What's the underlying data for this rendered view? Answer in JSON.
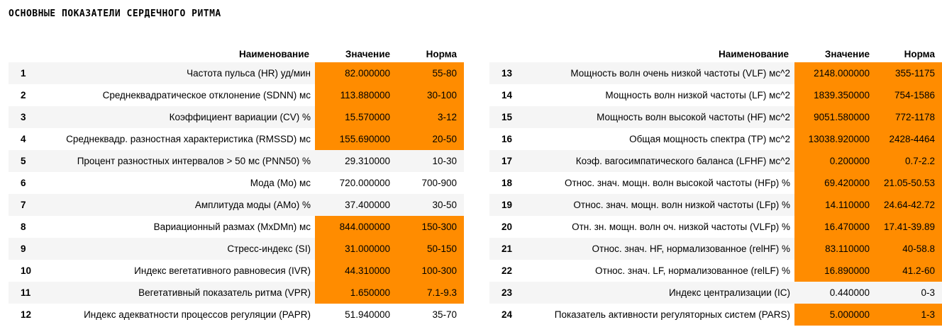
{
  "title": "ОСНОВНЫЕ ПОКАЗАТЕЛИ СЕРДЕЧНОГО РИТМА",
  "columns": {
    "name": "Наименование",
    "value": "Значение",
    "norm": "Норма"
  },
  "highlight_color": "#ff8c00",
  "left_rows": [
    {
      "idx": "1",
      "name": "Частота пульса (HR) уд/мин",
      "value": "82.000000",
      "norm": "55-80",
      "highlight": true
    },
    {
      "idx": "2",
      "name": "Среднеквадратическое отклонение (SDNN) мс",
      "value": "113.880000",
      "norm": "30-100",
      "highlight": true
    },
    {
      "idx": "3",
      "name": "Коэффициент вариации (CV) %",
      "value": "15.570000",
      "norm": "3-12",
      "highlight": true
    },
    {
      "idx": "4",
      "name": "Среднеквадр. разностная характеристика (RMSSD) мс",
      "value": "155.690000",
      "norm": "20-50",
      "highlight": true
    },
    {
      "idx": "5",
      "name": "Процент разностных интервалов > 50 мс (PNN50) %",
      "value": "29.310000",
      "norm": "10-30",
      "highlight": false
    },
    {
      "idx": "6",
      "name": "Мода (Mo) мс",
      "value": "720.000000",
      "norm": "700-900",
      "highlight": false
    },
    {
      "idx": "7",
      "name": "Амплитуда моды (AMo) %",
      "value": "37.400000",
      "norm": "30-50",
      "highlight": false
    },
    {
      "idx": "8",
      "name": "Вариационный размах (MxDMn) мс",
      "value": "844.000000",
      "norm": "150-300",
      "highlight": true
    },
    {
      "idx": "9",
      "name": "Стресс-индекс (SI)",
      "value": "31.000000",
      "norm": "50-150",
      "highlight": true
    },
    {
      "idx": "10",
      "name": "Индекс вегетативного равновесия (IVR)",
      "value": "44.310000",
      "norm": "100-300",
      "highlight": true
    },
    {
      "idx": "11",
      "name": "Вегетативный показатель ритма (VPR)",
      "value": "1.650000",
      "norm": "7.1-9.3",
      "highlight": true
    },
    {
      "idx": "12",
      "name": "Индекс адекватности процессов регуляции (PAPR)",
      "value": "51.940000",
      "norm": "35-70",
      "highlight": false
    }
  ],
  "right_rows": [
    {
      "idx": "13",
      "name": "Мощность волн очень низкой частоты (VLF) мс^2",
      "value": "2148.000000",
      "norm": "355-1175",
      "highlight": true
    },
    {
      "idx": "14",
      "name": "Мощность волн низкой частоты (LF) мс^2",
      "value": "1839.350000",
      "norm": "754-1586",
      "highlight": true
    },
    {
      "idx": "15",
      "name": "Мощность волн высокой частоты (HF) мс^2",
      "value": "9051.580000",
      "norm": "772-1178",
      "highlight": true
    },
    {
      "idx": "16",
      "name": "Общая мощность спектра (TP) мс^2",
      "value": "13038.920000",
      "norm": "2428-4464",
      "highlight": true
    },
    {
      "idx": "17",
      "name": "Коэф. вагосимпатического баланса (LFHF) мс^2",
      "value": "0.200000",
      "norm": "0.7-2.2",
      "highlight": true
    },
    {
      "idx": "18",
      "name": "Относ. знач. мощн. волн высокой частоты (HFp) %",
      "value": "69.420000",
      "norm": "21.05-50.53",
      "highlight": true
    },
    {
      "idx": "19",
      "name": "Относ. знач. мощн. волн низкой частоты (LFp) %",
      "value": "14.110000",
      "norm": "24.64-42.72",
      "highlight": true
    },
    {
      "idx": "20",
      "name": "Отн. зн. мощн. волн оч. низкой частоты (VLFp) %",
      "value": "16.470000",
      "norm": "17.41-39.89",
      "highlight": true
    },
    {
      "idx": "21",
      "name": "Относ. знач. HF, нормализованное (relHF) %",
      "value": "83.110000",
      "norm": "40-58.8",
      "highlight": true
    },
    {
      "idx": "22",
      "name": "Относ. знач. LF, нормализованное (relLF) %",
      "value": "16.890000",
      "norm": "41.2-60",
      "highlight": true
    },
    {
      "idx": "23",
      "name": "Индекс централизации (IC)",
      "value": "0.440000",
      "norm": "0-3",
      "highlight": false
    },
    {
      "idx": "24",
      "name": "Показатель активности регуляторных систем (PARS)",
      "value": "5.000000",
      "norm": "1-3",
      "highlight": true
    }
  ]
}
